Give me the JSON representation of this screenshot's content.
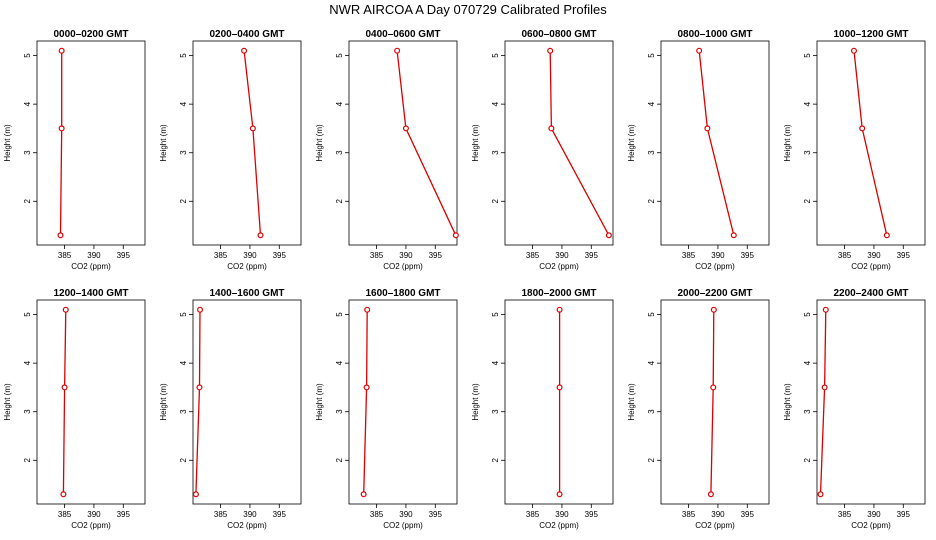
{
  "title": "NWR AIRCOA A  Day 070729  Calibrated Profiles",
  "chart_data": {
    "type": "line",
    "title": "NWR AIRCOA A  Day 070729  Calibrated Profiles",
    "xlabel": "CO2 (ppm)",
    "ylabel": "Height (m)",
    "xlim": [
      380.3,
      398.7
    ],
    "ylim": [
      1.1,
      5.3
    ],
    "xticks": [
      385,
      390,
      395
    ],
    "yticks": [
      2,
      3,
      4,
      5
    ],
    "heights": [
      1.3,
      3.5,
      5.1
    ],
    "line_color": "#dd0000",
    "panels": [
      {
        "title": "0000–0200 GMT",
        "co2": [
          384.3,
          384.5,
          384.5
        ]
      },
      {
        "title": "0200–0400 GMT",
        "co2": [
          391.8,
          390.5,
          389.0
        ]
      },
      {
        "title": "0400–0600 GMT",
        "co2": [
          398.5,
          390.0,
          388.5
        ]
      },
      {
        "title": "0600–0800 GMT",
        "co2": [
          398.0,
          388.2,
          388.0
        ]
      },
      {
        "title": "0800–1000 GMT",
        "co2": [
          392.7,
          388.2,
          386.8
        ]
      },
      {
        "title": "1000–1200 GMT",
        "co2": [
          392.2,
          388.0,
          386.6
        ]
      },
      {
        "title": "1200–1400 GMT",
        "co2": [
          384.8,
          385.0,
          385.2
        ]
      },
      {
        "title": "1400–1600 GMT",
        "co2": [
          380.8,
          381.4,
          381.5
        ]
      },
      {
        "title": "1600–1800 GMT",
        "co2": [
          382.8,
          383.3,
          383.4
        ]
      },
      {
        "title": "1800–2000 GMT",
        "co2": [
          389.6,
          389.6,
          389.6
        ]
      },
      {
        "title": "2000–2200 GMT",
        "co2": [
          388.8,
          389.2,
          389.3
        ]
      },
      {
        "title": "2200–2400 GMT",
        "co2": [
          380.9,
          381.6,
          381.8
        ]
      }
    ]
  }
}
